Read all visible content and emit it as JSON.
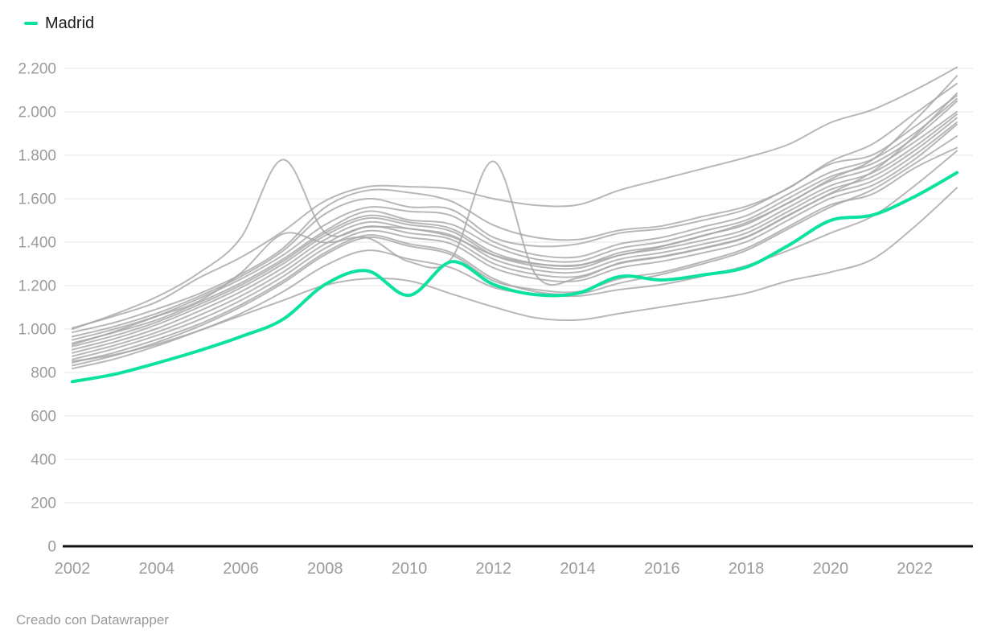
{
  "footer": {
    "text": "Creado con Datawrapper"
  },
  "colors": {
    "highlight": "#0be2a0",
    "context": "#a7a7a7",
    "grid": "#e9e9e9",
    "axis_text": "#9b9b9b",
    "baseline": "#111111",
    "legend_text": "#1a1a1a",
    "attribution_text": "#9a9a9a"
  },
  "chart_data": {
    "type": "line",
    "title": "",
    "xlabel": "",
    "ylabel": "",
    "grid": "horizontal",
    "legend_position": "top-left",
    "legend": {
      "label": "Madrid"
    },
    "x_range": [
      2002,
      2023
    ],
    "ylim": [
      0,
      2200
    ],
    "x": [
      2002,
      2003,
      2004,
      2005,
      2006,
      2007,
      2008,
      2009,
      2010,
      2011,
      2012,
      2013,
      2014,
      2015,
      2016,
      2017,
      2018,
      2019,
      2020,
      2021,
      2022,
      2023
    ],
    "x_ticks": [
      {
        "value": 2002,
        "label": "2002"
      },
      {
        "value": 2004,
        "label": "2004"
      },
      {
        "value": 2006,
        "label": "2006"
      },
      {
        "value": 2008,
        "label": "2008"
      },
      {
        "value": 2010,
        "label": "2010"
      },
      {
        "value": 2012,
        "label": "2012"
      },
      {
        "value": 2014,
        "label": "2014"
      },
      {
        "value": 2016,
        "label": "2016"
      },
      {
        "value": 2018,
        "label": "2018"
      },
      {
        "value": 2020,
        "label": "2020"
      },
      {
        "value": 2022,
        "label": "2022"
      }
    ],
    "y_ticks": [
      {
        "value": 0,
        "label": "0"
      },
      {
        "value": 200,
        "label": "200"
      },
      {
        "value": 400,
        "label": "400"
      },
      {
        "value": 600,
        "label": "600"
      },
      {
        "value": 800,
        "label": "800"
      },
      {
        "value": 1000,
        "label": "1.000"
      },
      {
        "value": 1200,
        "label": "1.200"
      },
      {
        "value": 1400,
        "label": "1.400"
      },
      {
        "value": 1600,
        "label": "1.600"
      },
      {
        "value": 1800,
        "label": "1.800"
      },
      {
        "value": 2000,
        "label": "2.000"
      },
      {
        "value": 2200,
        "label": "2.200"
      }
    ],
    "series": [
      {
        "name": "other-01",
        "role": "context",
        "values": [
          1005,
          1060,
          1125,
          1235,
          1330,
          1450,
          1590,
          1655,
          1655,
          1645,
          1600,
          1570,
          1572,
          1640,
          1690,
          1740,
          1790,
          1850,
          1950,
          2010,
          2100,
          2205
        ]
      },
      {
        "name": "other-02",
        "role": "context",
        "values": [
          1000,
          1068,
          1148,
          1258,
          1420,
          1780,
          1445,
          1470,
          1462,
          1425,
          1340,
          1300,
          1295,
          1340,
          1380,
          1430,
          1490,
          1580,
          1690,
          1780,
          1960,
          2165
        ]
      },
      {
        "name": "other-03",
        "role": "context",
        "values": [
          928,
          988,
          1058,
          1128,
          1258,
          1438,
          1398,
          1420,
          1310,
          1325,
          1772,
          1250,
          1235,
          1305,
          1335,
          1375,
          1425,
          1525,
          1625,
          1725,
          1890,
          2085
        ]
      },
      {
        "name": "other-04",
        "role": "context",
        "values": [
          985,
          1030,
          1092,
          1162,
          1252,
          1372,
          1560,
          1638,
          1628,
          1588,
          1478,
          1422,
          1412,
          1455,
          1475,
          1520,
          1565,
          1648,
          1772,
          1852,
          1992,
          2130
        ]
      },
      {
        "name": "other-05",
        "role": "context",
        "values": [
          965,
          1012,
          1072,
          1150,
          1242,
          1360,
          1530,
          1600,
          1562,
          1550,
          1422,
          1382,
          1392,
          1442,
          1462,
          1502,
          1552,
          1650,
          1760,
          1802,
          1932,
          2075
        ]
      },
      {
        "name": "other-06",
        "role": "context",
        "values": [
          950,
          1000,
          1060,
          1140,
          1230,
          1340,
          1480,
          1560,
          1542,
          1522,
          1402,
          1342,
          1332,
          1392,
          1422,
          1472,
          1522,
          1622,
          1722,
          1782,
          1902,
          2060
        ]
      },
      {
        "name": "other-07",
        "role": "context",
        "values": [
          935,
          985,
          1042,
          1122,
          1212,
          1322,
          1452,
          1542,
          1502,
          1482,
          1382,
          1322,
          1312,
          1372,
          1402,
          1452,
          1502,
          1602,
          1702,
          1762,
          1882,
          2048
        ]
      },
      {
        "name": "other-08",
        "role": "context",
        "values": [
          920,
          970,
          1032,
          1112,
          1202,
          1312,
          1442,
          1522,
          1492,
          1462,
          1352,
          1302,
          1292,
          1352,
          1382,
          1432,
          1482,
          1582,
          1682,
          1742,
          1862,
          2000
        ]
      },
      {
        "name": "other-09",
        "role": "context",
        "values": [
          905,
          955,
          1020,
          1100,
          1190,
          1300,
          1430,
          1510,
          1480,
          1450,
          1340,
          1290,
          1280,
          1340,
          1370,
          1410,
          1460,
          1560,
          1660,
          1720,
          1840,
          1988
        ]
      },
      {
        "name": "other-10",
        "role": "context",
        "values": [
          890,
          940,
          1002,
          1082,
          1172,
          1282,
          1412,
          1492,
          1462,
          1432,
          1322,
          1272,
          1262,
          1322,
          1352,
          1392,
          1442,
          1542,
          1642,
          1702,
          1822,
          1972
        ]
      },
      {
        "name": "other-11",
        "role": "context",
        "values": [
          875,
          925,
          985,
          1062,
          1152,
          1262,
          1392,
          1472,
          1442,
          1412,
          1302,
          1252,
          1242,
          1302,
          1332,
          1372,
          1422,
          1522,
          1622,
          1682,
          1802,
          1952
        ]
      },
      {
        "name": "other-12",
        "role": "context",
        "values": [
          860,
          910,
          970,
          1042,
          1132,
          1242,
          1372,
          1452,
          1422,
          1392,
          1282,
          1232,
          1222,
          1282,
          1312,
          1352,
          1402,
          1502,
          1602,
          1662,
          1782,
          1942
        ]
      },
      {
        "name": "other-13",
        "role": "context",
        "values": [
          845,
          892,
          952,
          1022,
          1112,
          1222,
          1352,
          1432,
          1392,
          1352,
          1232,
          1172,
          1162,
          1212,
          1252,
          1302,
          1362,
          1462,
          1562,
          1642,
          1762,
          1888
        ]
      },
      {
        "name": "other-14",
        "role": "context",
        "values": [
          832,
          878,
          938,
          1012,
          1102,
          1212,
          1342,
          1422,
          1382,
          1342,
          1222,
          1182,
          1172,
          1232,
          1262,
          1312,
          1372,
          1472,
          1572,
          1622,
          1742,
          1835
        ]
      },
      {
        "name": "other-15",
        "role": "context",
        "values": [
          818,
          862,
          922,
          992,
          1072,
          1172,
          1292,
          1362,
          1322,
          1282,
          1192,
          1162,
          1152,
          1182,
          1205,
          1245,
          1292,
          1362,
          1442,
          1520,
          1660,
          1820
        ]
      },
      {
        "name": "other-16",
        "role": "context",
        "values": [
          852,
          882,
          930,
          992,
          1062,
          1132,
          1202,
          1232,
          1222,
          1162,
          1102,
          1052,
          1042,
          1072,
          1102,
          1132,
          1165,
          1222,
          1262,
          1322,
          1472,
          1650
        ]
      },
      {
        "name": "Madrid",
        "role": "highlight",
        "values": [
          758,
          792,
          843,
          900,
          965,
          1045,
          1205,
          1268,
          1155,
          1310,
          1205,
          1158,
          1165,
          1242,
          1226,
          1250,
          1285,
          1385,
          1500,
          1525,
          1610,
          1720
        ]
      }
    ]
  }
}
